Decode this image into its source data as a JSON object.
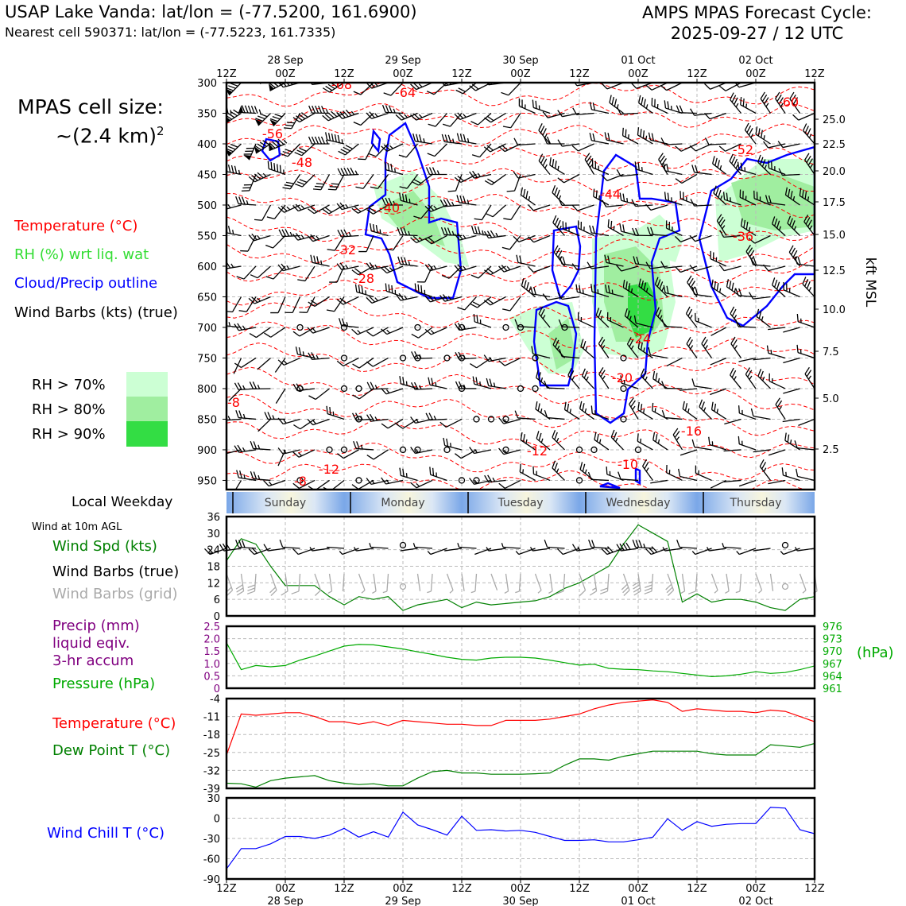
{
  "header": {
    "title_left": "USAP Lake Vanda: lat/lon = (-77.5200, 161.6900)",
    "subtitle_left": "Nearest cell 590371: lat/lon = (-77.5223, 161.7335)",
    "title_right_1": "AMPS MPAS Forecast Cycle:",
    "title_right_2": "2025-09-27 / 12 UTC"
  },
  "legend": {
    "cell_size_1": "MPAS cell size:",
    "cell_size_2": "~(2.4 km)",
    "cell_size_sup": "2",
    "temperature": "Temperature (°C)",
    "rh": "RH (%) wrt liq. wat",
    "cloud": "Cloud/Precip outline",
    "wind_barbs": "Wind Barbs (kts) (true)",
    "rh70": "RH > 70%",
    "rh80": "RH > 80%",
    "rh90": "RH > 90%",
    "local_weekday": "Local Weekday",
    "wind10": "Wind at 10m AGL",
    "wind_spd": "Wind Spd (kts)",
    "barbs_true": "Wind Barbs (true)",
    "barbs_grid": "Wind Barbs (grid)",
    "precip_1": "Precip (mm)",
    "precip_2": "liquid eqiv.",
    "precip_3": "3-hr accum",
    "pressure": "Pressure (hPa)",
    "temp2": "Temperature (°C)",
    "dewpoint": "Dew Point T (°C)",
    "windchill": "Wind Chill T (°C)",
    "hpa_label": "(hPa)",
    "kft_label": "kft MSL"
  },
  "colors": {
    "temp": "#ff0000",
    "rh_text": "#33dd33",
    "cloud": "#0000ff",
    "rh70": "#ccffd4",
    "rh80": "#a0eea0",
    "rh90": "#33dd44",
    "wind": "#008000",
    "grid_barb": "#aaaaaa",
    "precip": "#800080",
    "pressure": "#00aa00",
    "dew": "#008000",
    "chill": "#0000ff"
  },
  "time_axis": {
    "top_hours": [
      "12Z",
      "00Z",
      "12Z",
      "00Z",
      "12Z",
      "00Z",
      "12Z",
      "00Z",
      "12Z",
      "00Z",
      "12Z"
    ],
    "dates": [
      "28 Sep",
      "29 Sep",
      "30 Sep",
      "01 Oct",
      "02 Oct"
    ],
    "bottom_hours": [
      "12Z",
      "00Z",
      "12Z",
      "00Z",
      "12Z",
      "00Z",
      "12Z",
      "00Z",
      "12Z",
      "00Z",
      "12Z"
    ],
    "weekdays": [
      "Sunday",
      "Monday",
      "Tuesday",
      "Wednesday",
      "Thursday"
    ]
  },
  "chart_data": [
    {
      "type": "contour",
      "title": "Vertical cross-section (pressure vs time)",
      "y_axis": {
        "label": "hPa",
        "ticks": [
          "300",
          "350",
          "400",
          "450",
          "500",
          "550",
          "600",
          "650",
          "700",
          "750",
          "800",
          "850",
          "900",
          "950"
        ],
        "range": [
          300,
          965
        ]
      },
      "right_axis": {
        "label": "kft MSL",
        "ticks": [
          "25.0",
          "22.5",
          "20.0",
          "17.5",
          "15.0",
          "12.5",
          "10.0",
          "7.5",
          "5.0",
          "2.5"
        ]
      },
      "temperature_contour_labels": [
        "-68",
        "-64",
        "-60",
        "-56",
        "-52",
        "-48",
        "-44",
        "-40",
        "-36",
        "-32",
        "-28",
        "-24",
        "-20",
        "-16",
        "-12",
        "-12",
        "-10",
        "-8",
        "-8",
        "0"
      ],
      "x_range_hours": [
        0,
        120
      ]
    },
    {
      "type": "line",
      "title": "Wind at 10m AGL",
      "ylabel": "Wind Spd (kts)",
      "yticks": [
        "36",
        "30",
        "24",
        "18",
        "12",
        "6",
        "0"
      ],
      "ylim": [
        0,
        36
      ],
      "x_hours": [
        0,
        3,
        6,
        9,
        12,
        15,
        18,
        21,
        24,
        27,
        30,
        33,
        36,
        39,
        42,
        45,
        48,
        51,
        54,
        57,
        60,
        63,
        66,
        69,
        72,
        75,
        78,
        81,
        84,
        87,
        90,
        93,
        96,
        99,
        102,
        105,
        108,
        111,
        114,
        117,
        120
      ],
      "series": [
        {
          "name": "Wind Spd (kts)",
          "values": [
            20,
            28,
            26,
            18,
            11,
            11,
            11,
            7,
            4,
            7,
            6,
            7,
            2,
            4,
            5,
            6,
            3,
            5,
            4,
            4.5,
            5,
            5.5,
            7,
            10,
            12,
            15,
            18,
            26,
            33,
            30,
            27,
            5,
            8,
            5,
            6,
            6,
            5,
            3,
            2,
            6,
            7
          ]
        }
      ]
    },
    {
      "type": "line",
      "title": "Precip / Pressure",
      "ylabel_left": "Precip (mm)",
      "yticks_left": [
        "2.5",
        "2.0",
        "1.5",
        "1.0",
        "0.5",
        "0"
      ],
      "ylim_left": [
        0,
        2.5
      ],
      "ylabel_right": "Pressure (hPa)",
      "yticks_right": [
        "976",
        "973",
        "970",
        "967",
        "964",
        "961"
      ],
      "ylim_right": [
        961,
        976
      ],
      "x_hours": [
        0,
        3,
        6,
        9,
        12,
        15,
        18,
        21,
        24,
        27,
        30,
        33,
        36,
        39,
        42,
        45,
        48,
        51,
        54,
        57,
        60,
        63,
        66,
        69,
        72,
        75,
        78,
        81,
        84,
        87,
        90,
        93,
        96,
        99,
        102,
        105,
        108,
        111,
        114,
        117,
        120
      ],
      "series": [
        {
          "name": "Pressure (hPa)",
          "values": [
            972.0,
            965.5,
            966.5,
            966.2,
            966.5,
            967.8,
            968.8,
            970.0,
            971.2,
            971.6,
            971.5,
            971.0,
            970.5,
            969.8,
            969.2,
            968.5,
            968.0,
            967.8,
            968.3,
            968.5,
            968.5,
            968.3,
            967.8,
            967.2,
            966.6,
            966.8,
            965.8,
            965.6,
            965.5,
            965.2,
            965.0,
            964.6,
            964.2,
            963.8,
            964.0,
            964.4,
            965.0,
            964.6,
            964.8,
            965.5,
            966.4
          ]
        },
        {
          "name": "Precip (mm)",
          "values": []
        }
      ]
    },
    {
      "type": "line",
      "title": "Temperature / Dew Point",
      "yticks": [
        "-4",
        "-11",
        "-18",
        "-25",
        "-32",
        "-39"
      ],
      "ylim": [
        -39,
        -4
      ],
      "x_hours": [
        0,
        3,
        6,
        9,
        12,
        15,
        18,
        21,
        24,
        27,
        30,
        33,
        36,
        39,
        42,
        45,
        48,
        51,
        54,
        57,
        60,
        63,
        66,
        69,
        72,
        75,
        78,
        81,
        84,
        87,
        90,
        93,
        96,
        99,
        102,
        105,
        108,
        111,
        114,
        117,
        120
      ],
      "series": [
        {
          "name": "Temperature (°C)",
          "values": [
            -26,
            -10,
            -10.5,
            -10,
            -9.5,
            -9.5,
            -11,
            -13,
            -13,
            -14,
            -13,
            -14.5,
            -12.5,
            -13,
            -13.5,
            -14,
            -14,
            -14.5,
            -14.5,
            -12.5,
            -12.5,
            -12.5,
            -12,
            -11,
            -10,
            -8,
            -6.5,
            -5.5,
            -5,
            -4.5,
            -5.5,
            -9,
            -8,
            -8.5,
            -9,
            -9,
            -9.5,
            -8.5,
            -9,
            -11,
            -13
          ]
        },
        {
          "name": "Dew Point T (°C)",
          "values": [
            -37,
            -37.2,
            -38.5,
            -36,
            -35,
            -34.5,
            -34,
            -36,
            -37,
            -37.5,
            -37.2,
            -38,
            -38,
            -35,
            -32.5,
            -32,
            -33,
            -33,
            -33.5,
            -33.5,
            -33.5,
            -33.3,
            -33,
            -30,
            -27.5,
            -27.5,
            -28,
            -26.5,
            -25.5,
            -24.5,
            -24.5,
            -24.5,
            -24.5,
            -25.5,
            -26,
            -26,
            -26,
            -22,
            -22.5,
            -23,
            -21.5
          ]
        }
      ]
    },
    {
      "type": "line",
      "title": "Wind Chill",
      "yticks": [
        "30",
        "0",
        "-30",
        "-60",
        "-90"
      ],
      "ylim": [
        -90,
        30
      ],
      "x_hours": [
        0,
        3,
        6,
        9,
        12,
        15,
        18,
        21,
        24,
        27,
        30,
        33,
        36,
        39,
        42,
        45,
        48,
        51,
        54,
        57,
        60,
        63,
        66,
        69,
        72,
        75,
        78,
        81,
        84,
        87,
        90,
        93,
        96,
        99,
        102,
        105,
        108,
        111,
        114,
        117,
        120
      ],
      "series": [
        {
          "name": "Wind Chill T (°C)",
          "values": [
            -75,
            -45,
            -45,
            -38,
            -27,
            -27,
            -30,
            -25,
            -15,
            -28,
            -20,
            -28,
            9,
            -10,
            -17,
            -25,
            3,
            -18,
            -17,
            -19,
            -18,
            -21,
            -27,
            -33,
            -33,
            -32,
            -35,
            -35,
            -32,
            -28,
            -1,
            -18,
            -5,
            -12,
            -9,
            -8,
            -8,
            16,
            15,
            -17,
            -23
          ]
        }
      ]
    }
  ]
}
